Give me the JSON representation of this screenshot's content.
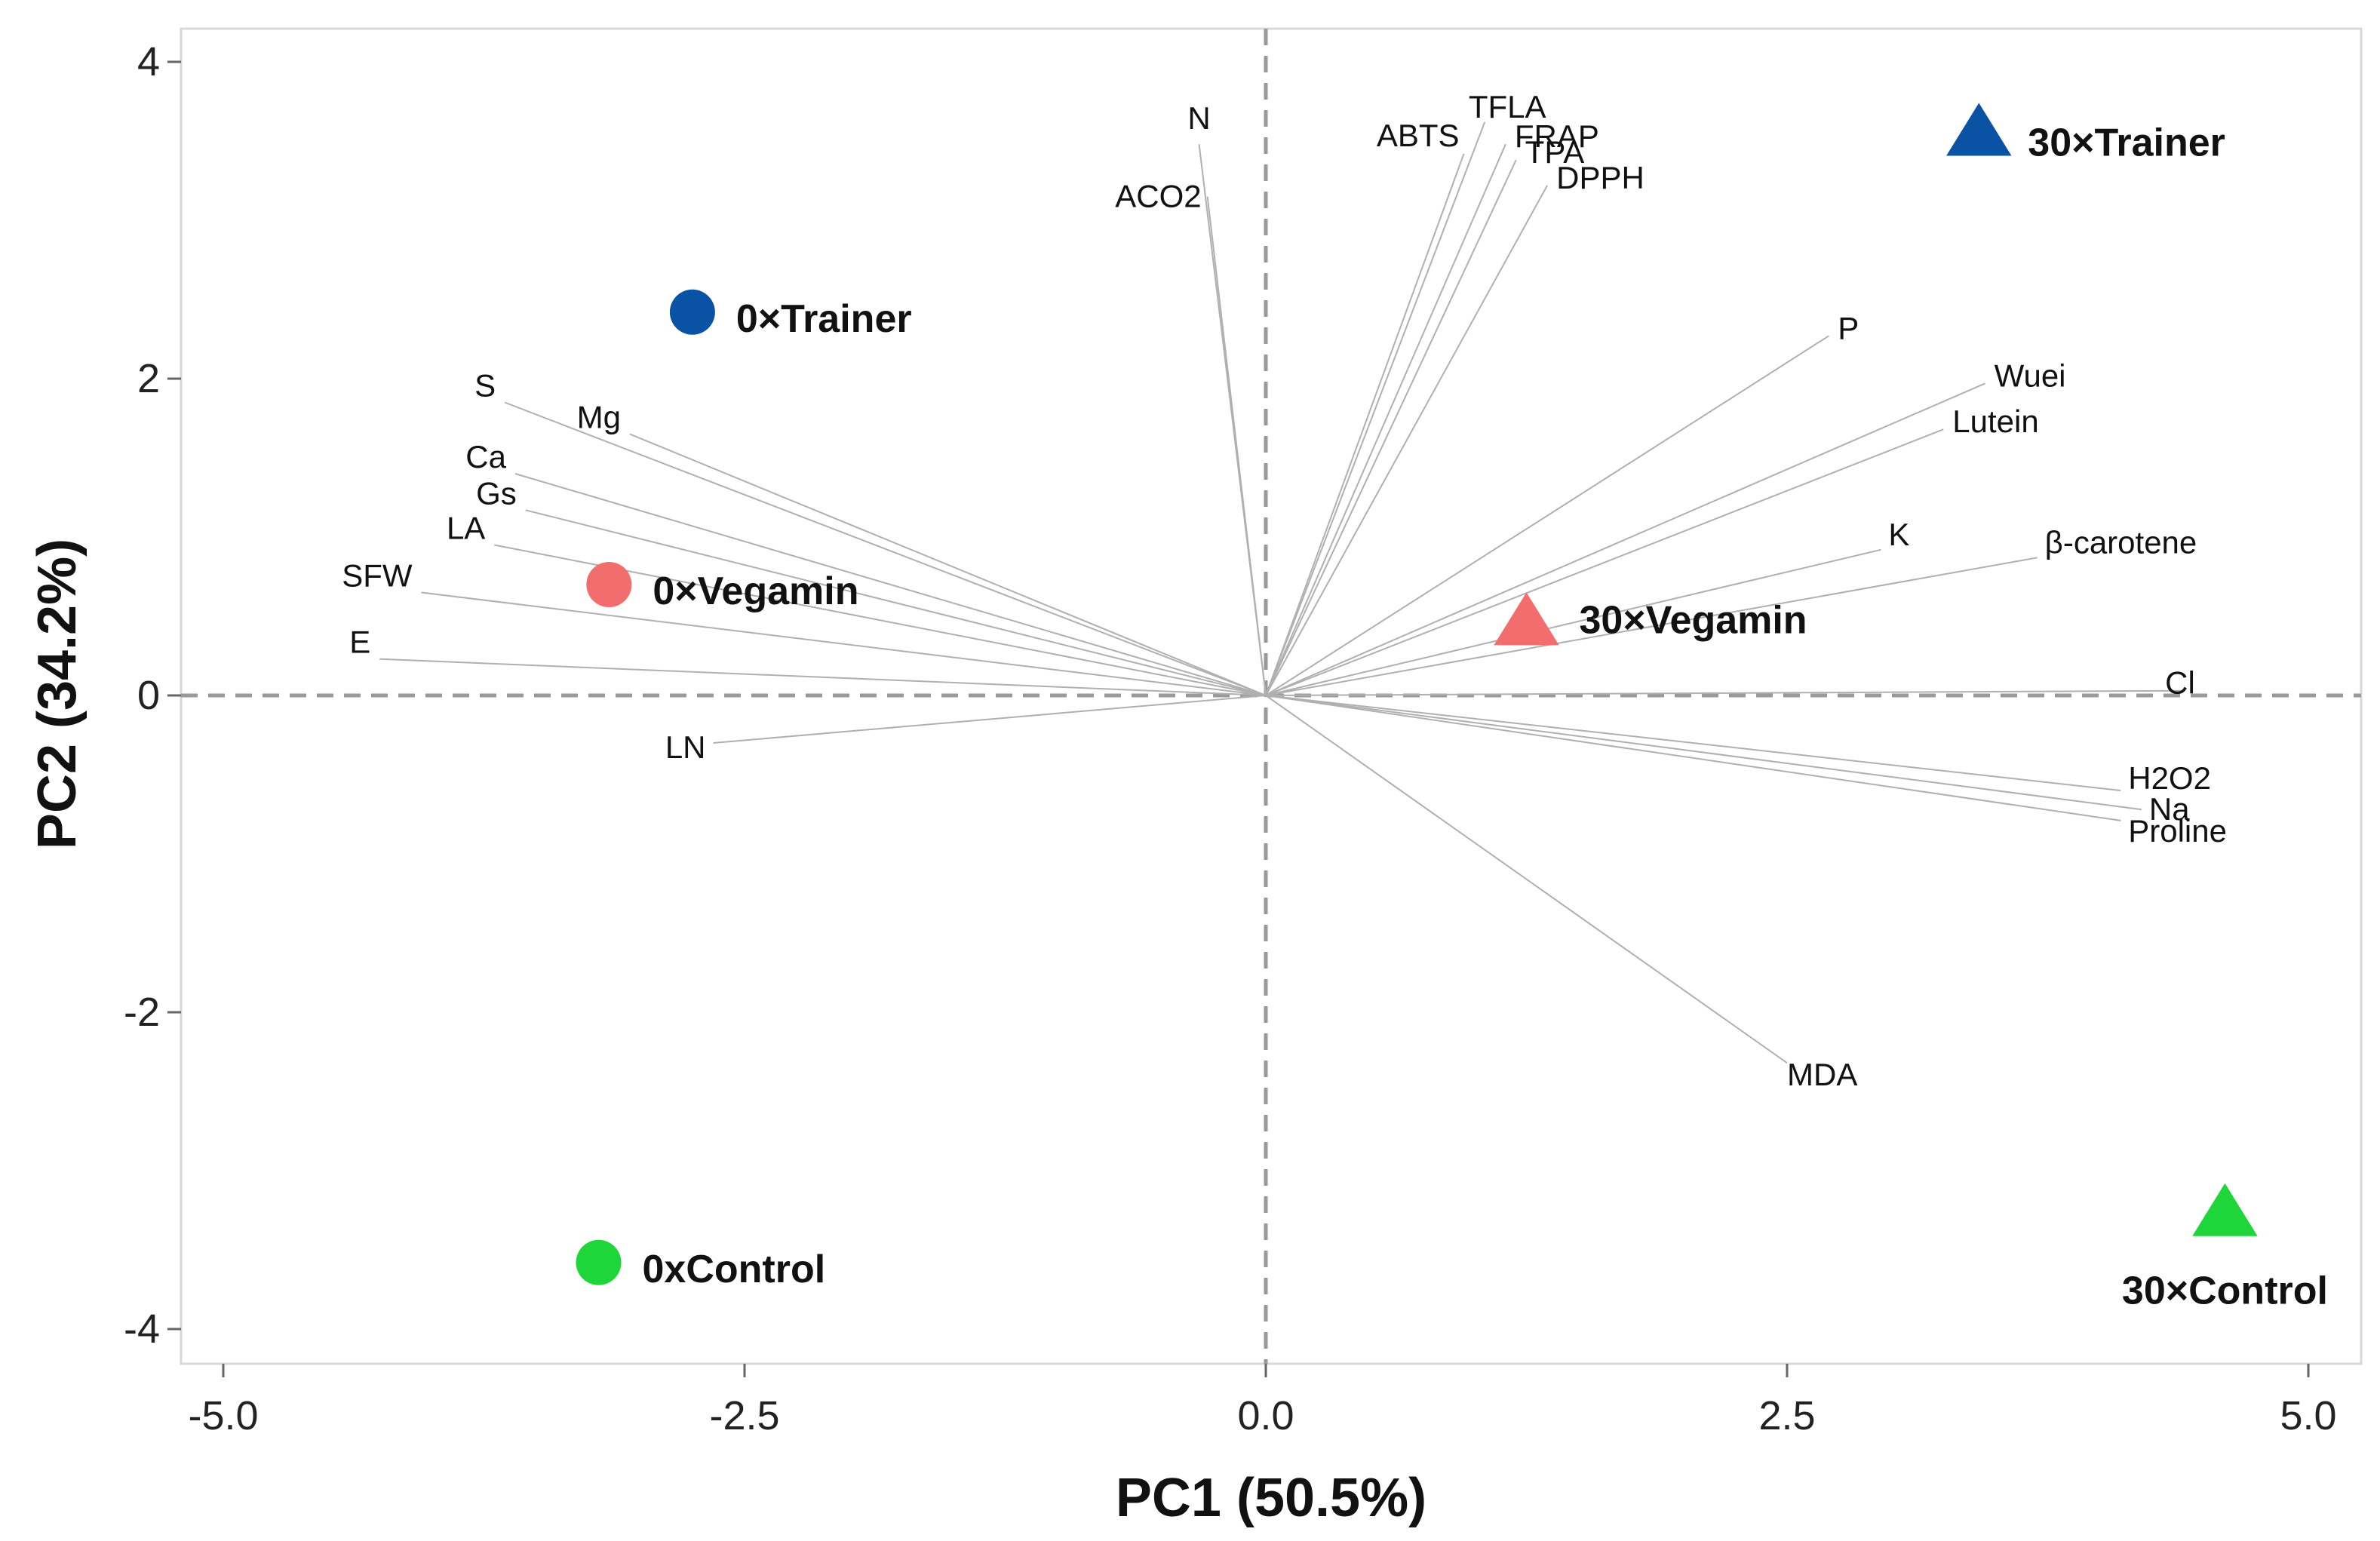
{
  "chart_data": {
    "type": "scatter",
    "subtype": "pca-biplot",
    "xlabel": "PC1 (50.5%)",
    "ylabel": "PC2 (34.2%)",
    "xlim": [
      -5.1,
      5.2
    ],
    "ylim": [
      -4.2,
      4.2
    ],
    "x_ticks": [
      -5.0,
      -2.5,
      0.0,
      2.5,
      5.0
    ],
    "x_tick_labels": [
      "-5.0",
      "-2.5",
      "0.0",
      "2.5",
      "5.0"
    ],
    "y_ticks": [
      4,
      2,
      0,
      -2,
      -4
    ],
    "y_tick_labels": [
      "4",
      "2",
      "0",
      "-2",
      "-4"
    ],
    "reference_lines": {
      "x": 0,
      "y": 0,
      "style": "dashed"
    },
    "loadings": [
      {
        "name": "N",
        "x": -0.32,
        "y": 3.48
      },
      {
        "name": "ACO2",
        "x": -0.28,
        "y": 3.15
      },
      {
        "name": "ABTS",
        "x": 0.95,
        "y": 3.42
      },
      {
        "name": "TFLA",
        "x": 1.05,
        "y": 3.62
      },
      {
        "name": "FRAP",
        "x": 1.15,
        "y": 3.48
      },
      {
        "name": "TPA",
        "x": 1.2,
        "y": 3.38
      },
      {
        "name": "DPPH",
        "x": 1.35,
        "y": 3.22
      },
      {
        "name": "P",
        "x": 2.7,
        "y": 2.27
      },
      {
        "name": "Wuei",
        "x": 3.45,
        "y": 1.97
      },
      {
        "name": "Lutein",
        "x": 3.25,
        "y": 1.68
      },
      {
        "name": "K",
        "x": 2.95,
        "y": 0.92
      },
      {
        "name": "β-carotene",
        "x": 3.7,
        "y": 0.87
      },
      {
        "name": "Cl",
        "x": 4.4,
        "y": 0.03
      },
      {
        "name": "H2O2",
        "x": 4.1,
        "y": -0.6
      },
      {
        "name": "Na",
        "x": 4.2,
        "y": -0.72
      },
      {
        "name": "Proline",
        "x": 4.1,
        "y": -0.79
      },
      {
        "name": "MDA",
        "x": 2.5,
        "y": -2.32
      },
      {
        "name": "LN",
        "x": -2.65,
        "y": -0.3
      },
      {
        "name": "E",
        "x": -4.25,
        "y": 0.23
      },
      {
        "name": "SFW",
        "x": -4.05,
        "y": 0.65
      },
      {
        "name": "LA",
        "x": -3.7,
        "y": 0.95
      },
      {
        "name": "Gs",
        "x": -3.55,
        "y": 1.17
      },
      {
        "name": "Ca",
        "x": -3.6,
        "y": 1.4
      },
      {
        "name": "S",
        "x": -3.65,
        "y": 1.85
      },
      {
        "name": "Mg",
        "x": -3.05,
        "y": 1.65
      }
    ],
    "series": [
      {
        "name": "0×Trainer",
        "x": -2.75,
        "y": 2.42,
        "marker": "circle",
        "color": "#0a52a3"
      },
      {
        "name": "0×Vegamin",
        "x": -3.15,
        "y": 0.7,
        "marker": "circle",
        "color": "#f26d6d"
      },
      {
        "name": "0xControl",
        "x": -3.2,
        "y": -3.58,
        "marker": "circle",
        "color": "#1ed63a"
      },
      {
        "name": "30×Trainer",
        "x": 3.42,
        "y": 3.55,
        "marker": "triangle",
        "color": "#0a52a3"
      },
      {
        "name": "30×Vegamin",
        "x": 1.25,
        "y": 0.46,
        "marker": "triangle",
        "color": "#f26d6d"
      },
      {
        "name": "30×Control",
        "x": 4.6,
        "y": -3.27,
        "marker": "triangle",
        "color": "#1ed63a"
      }
    ]
  }
}
